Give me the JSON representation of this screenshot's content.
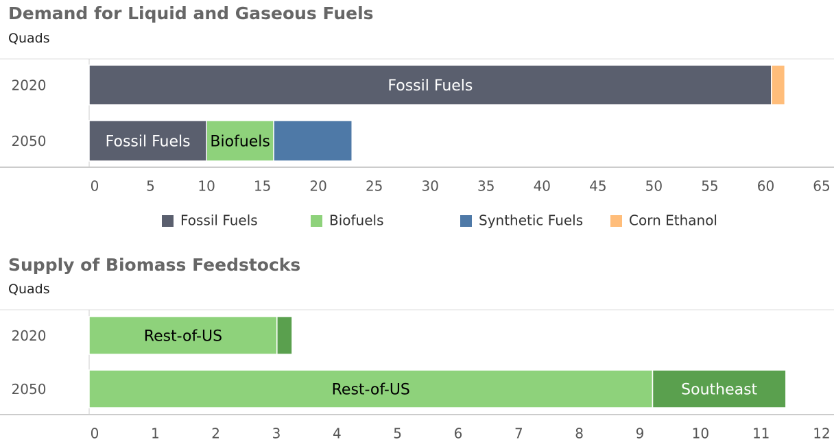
{
  "chart_data": [
    {
      "type": "stacked-bar-horizontal",
      "title": "Demand for Liquid and Gaseous Fuels",
      "subtitle": "Quads",
      "categories": [
        "2020",
        "2050"
      ],
      "series": [
        {
          "name": "Fossil Fuels",
          "color": "#5a5f6e",
          "label_color": "#ffffff",
          "values": [
            61.0,
            10.5
          ]
        },
        {
          "name": "Biofuels",
          "color": "#8ed27b",
          "label_color": "#000000",
          "values": [
            0,
            6.0
          ]
        },
        {
          "name": "Synthetic Fuels",
          "color": "#4e79a7",
          "label_color": "#ffffff",
          "values": [
            0,
            7.0
          ]
        },
        {
          "name": "Corn Ethanol",
          "color": "#ffbd7a",
          "label_color": "#000000",
          "values": [
            1.2,
            0
          ]
        }
      ],
      "xlim": [
        0,
        65
      ],
      "xticks": [
        0,
        5,
        10,
        15,
        20,
        25,
        30,
        35,
        40,
        45,
        50,
        55,
        60,
        65
      ],
      "legend": "bottom"
    },
    {
      "type": "stacked-bar-horizontal",
      "title": "Supply of Biomass Feedstocks",
      "subtitle": "Quads",
      "categories": [
        "2020",
        "2050"
      ],
      "series": [
        {
          "name": "Rest-of-US",
          "color": "#8ed27b",
          "label_color": "#000000",
          "values": [
            3.1,
            9.3
          ]
        },
        {
          "name": "Southeast",
          "color": "#5aa04e",
          "label_color": "#ffffff",
          "values": [
            0.25,
            2.2
          ]
        }
      ],
      "xlim": [
        0,
        12
      ],
      "xticks": [
        0,
        1,
        2,
        3,
        4,
        5,
        6,
        7,
        8,
        9,
        10,
        11,
        12
      ]
    }
  ]
}
